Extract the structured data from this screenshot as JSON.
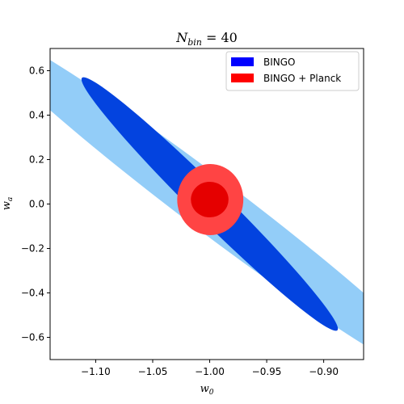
{
  "chart_data": {
    "type": "contour",
    "title": {
      "main": "N",
      "sub": "bin",
      "rest": " = 40"
    },
    "xlabel": {
      "main": "w",
      "sub": "0"
    },
    "ylabel": {
      "main": "w",
      "sub": "a"
    },
    "xlim": [
      -1.14,
      -0.865
    ],
    "ylim": [
      -0.7,
      0.7
    ],
    "xticks": [
      -1.1,
      -1.05,
      -1.0,
      -0.95,
      -0.9
    ],
    "xtick_labels": [
      "−1.10",
      "−1.05",
      "−1.00",
      "−0.95",
      "−0.90"
    ],
    "yticks": [
      0.6,
      0.4,
      0.2,
      0.0,
      -0.2,
      -0.4,
      -0.6
    ],
    "ytick_labels": [
      "0.6",
      "0.4",
      "0.2",
      "0.0",
      "−0.2",
      "−0.4",
      "−0.6"
    ],
    "legend_position": "top-right",
    "legend": [
      {
        "label": "BINGO",
        "color": "#0000ff"
      },
      {
        "label": "BINGO + Planck",
        "color": "#ff0000"
      }
    ],
    "series": [
      {
        "name": "BINGO",
        "center": [
          -1.0,
          0.0
        ],
        "contours": [
          {
            "level": "2sigma",
            "color": "#93cdf8",
            "end_a": [
              -1.209,
              0.8095
            ],
            "end_b": [
              -0.791,
              -0.8095
            ],
            "half_width_at_center": 0.0393
          },
          {
            "level": "1sigma",
            "color": "#0343df",
            "end_a": [
              -1.112,
              0.568
            ],
            "end_b": [
              -0.888,
              -0.568
            ],
            "half_width_at_center": 0.0205
          }
        ]
      },
      {
        "name": "BINGO + Planck",
        "center": [
          -1.0,
          0.02
        ],
        "contours": [
          {
            "level": "2sigma",
            "color": "#ff4444",
            "w0_range": [
              -1.0285,
              -0.9705
            ],
            "wa_range": [
              -0.14,
              0.18
            ]
          },
          {
            "level": "1sigma",
            "color": "#e50000",
            "w0_range": [
              -1.0165,
              -0.9835
            ],
            "wa_range": [
              -0.06,
              0.1
            ]
          }
        ]
      }
    ]
  }
}
